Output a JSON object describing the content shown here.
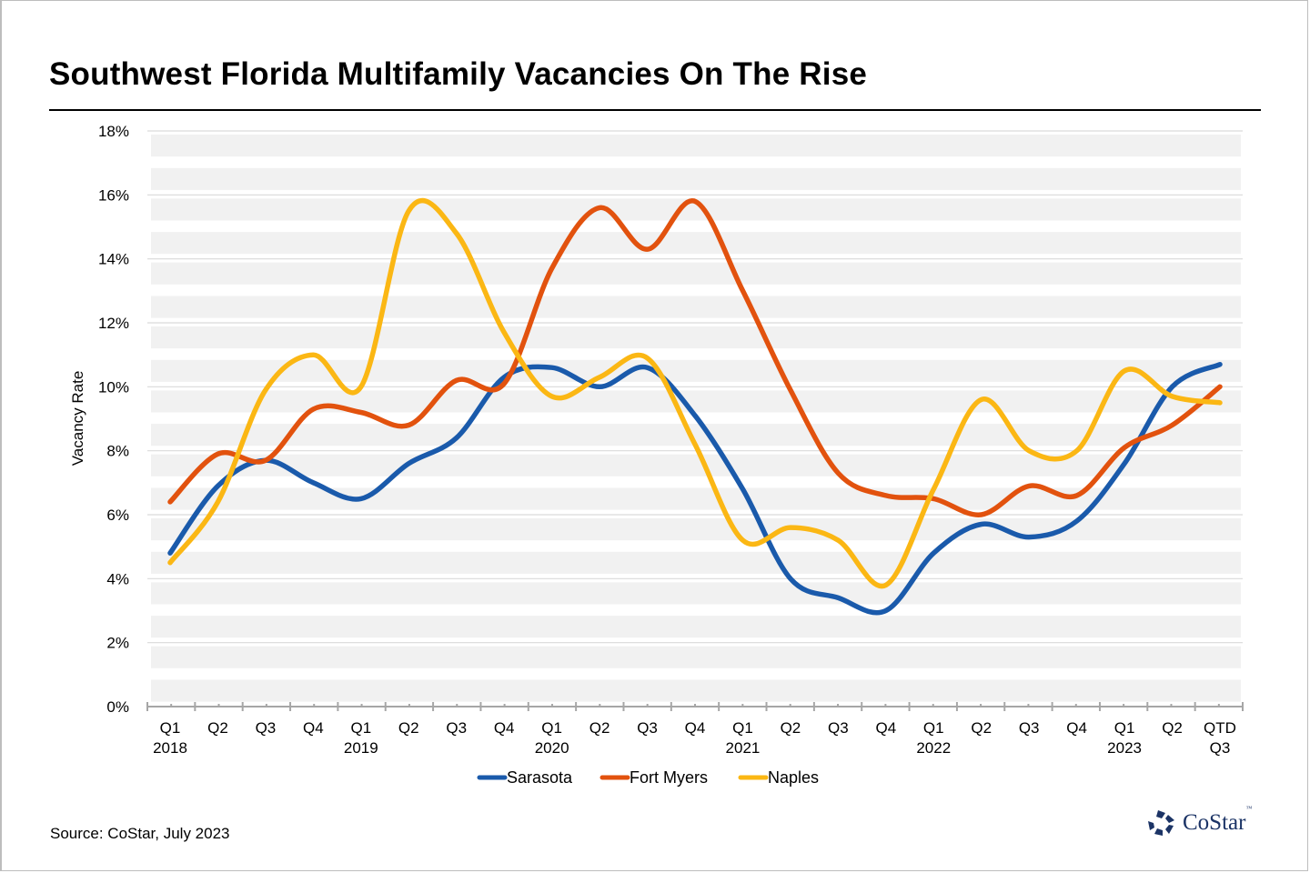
{
  "chart_data": {
    "type": "line",
    "title": "Southwest Florida Multifamily Vacancies On The Rise",
    "xlabel": "",
    "ylabel": "Vacancy Rate",
    "ylim": [
      0,
      18
    ],
    "yticks": [
      0,
      2,
      4,
      6,
      8,
      10,
      12,
      14,
      16,
      18
    ],
    "ytick_labels": [
      "0%",
      "2%",
      "4%",
      "6%",
      "8%",
      "10%",
      "12%",
      "14%",
      "16%",
      "18%"
    ],
    "categories": [
      "Q1 2018",
      "Q2 2018",
      "Q3 2018",
      "Q4 2018",
      "Q1 2019",
      "Q2 2019",
      "Q3 2019",
      "Q4 2019",
      "Q1 2020",
      "Q2 2020",
      "Q3 2020",
      "Q4 2020",
      "Q1 2021",
      "Q2 2021",
      "Q3 2021",
      "Q4 2021",
      "Q1 2022",
      "Q2 2022",
      "Q3 2022",
      "Q4 2022",
      "Q1 2023",
      "Q2 2023",
      "QTD Q3"
    ],
    "xtick_labels": [
      {
        "line1": "Q1",
        "line2": "2018"
      },
      {
        "line1": "Q2",
        "line2": ""
      },
      {
        "line1": "Q3",
        "line2": ""
      },
      {
        "line1": "Q4",
        "line2": ""
      },
      {
        "line1": "Q1",
        "line2": "2019"
      },
      {
        "line1": "Q2",
        "line2": ""
      },
      {
        "line1": "Q3",
        "line2": ""
      },
      {
        "line1": "Q4",
        "line2": ""
      },
      {
        "line1": "Q1",
        "line2": "2020"
      },
      {
        "line1": "Q2",
        "line2": ""
      },
      {
        "line1": "Q3",
        "line2": ""
      },
      {
        "line1": "Q4",
        "line2": ""
      },
      {
        "line1": "Q1",
        "line2": "2021"
      },
      {
        "line1": "Q2",
        "line2": ""
      },
      {
        "line1": "Q3",
        "line2": ""
      },
      {
        "line1": "Q4",
        "line2": ""
      },
      {
        "line1": "Q1",
        "line2": "2022"
      },
      {
        "line1": "Q2",
        "line2": ""
      },
      {
        "line1": "Q3",
        "line2": ""
      },
      {
        "line1": "Q4",
        "line2": ""
      },
      {
        "line1": "Q1",
        "line2": "2023"
      },
      {
        "line1": "Q2",
        "line2": ""
      },
      {
        "line1": "QTD",
        "line2": "Q3"
      }
    ],
    "series": [
      {
        "name": "Sarasota",
        "color": "#1a5aab",
        "values": [
          4.8,
          6.9,
          7.7,
          7.0,
          6.5,
          7.6,
          8.4,
          10.3,
          10.6,
          10.0,
          10.6,
          9.1,
          6.8,
          4.0,
          3.4,
          3.0,
          4.8,
          5.7,
          5.3,
          5.8,
          7.6,
          10.0,
          10.7
        ]
      },
      {
        "name": "Fort Myers",
        "color": "#e2520e",
        "values": [
          6.4,
          7.9,
          7.7,
          9.3,
          9.2,
          8.8,
          10.2,
          10.1,
          13.7,
          15.6,
          14.3,
          15.8,
          13.0,
          9.9,
          7.3,
          6.6,
          6.5,
          6.0,
          6.9,
          6.6,
          8.1,
          8.8,
          10.0
        ]
      },
      {
        "name": "Naples",
        "color": "#fbb714",
        "values": [
          4.5,
          6.4,
          9.9,
          11.0,
          10.0,
          15.5,
          14.8,
          11.7,
          9.7,
          10.3,
          10.9,
          8.2,
          5.2,
          5.6,
          5.2,
          3.8,
          6.8,
          9.6,
          8.0,
          8.0,
          10.5,
          9.7,
          9.5
        ]
      }
    ],
    "grid": true,
    "legend": "bottom-center",
    "smoothed": true
  },
  "source_note": "Source: CoStar, July 2023",
  "logo": {
    "name": "CoStar",
    "tm": "™"
  }
}
